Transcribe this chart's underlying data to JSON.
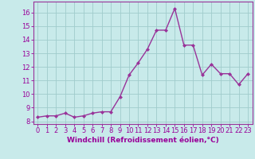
{
  "x": [
    0,
    1,
    2,
    3,
    4,
    5,
    6,
    7,
    8,
    9,
    10,
    11,
    12,
    13,
    14,
    15,
    16,
    17,
    18,
    19,
    20,
    21,
    22,
    23
  ],
  "y": [
    8.3,
    8.4,
    8.4,
    8.6,
    8.3,
    8.4,
    8.6,
    8.7,
    8.7,
    9.8,
    11.4,
    12.3,
    13.3,
    14.7,
    14.7,
    16.3,
    13.6,
    13.6,
    11.4,
    12.2,
    11.5,
    11.5,
    10.7,
    11.5
  ],
  "line_color": "#993399",
  "marker": "D",
  "marker_size": 2.0,
  "bg_color": "#c8eaea",
  "grid_color": "#a0cccc",
  "xlabel": "Windchill (Refroidissement éolien,°C)",
  "xlim": [
    -0.5,
    23.5
  ],
  "ylim": [
    7.8,
    16.8
  ],
  "yticks": [
    8,
    9,
    10,
    11,
    12,
    13,
    14,
    15,
    16
  ],
  "xticks": [
    0,
    1,
    2,
    3,
    4,
    5,
    6,
    7,
    8,
    9,
    10,
    11,
    12,
    13,
    14,
    15,
    16,
    17,
    18,
    19,
    20,
    21,
    22,
    23
  ],
  "line_width": 1.0,
  "font_color": "#990099",
  "xlabel_fontsize": 6.5,
  "tick_fontsize": 6.0
}
